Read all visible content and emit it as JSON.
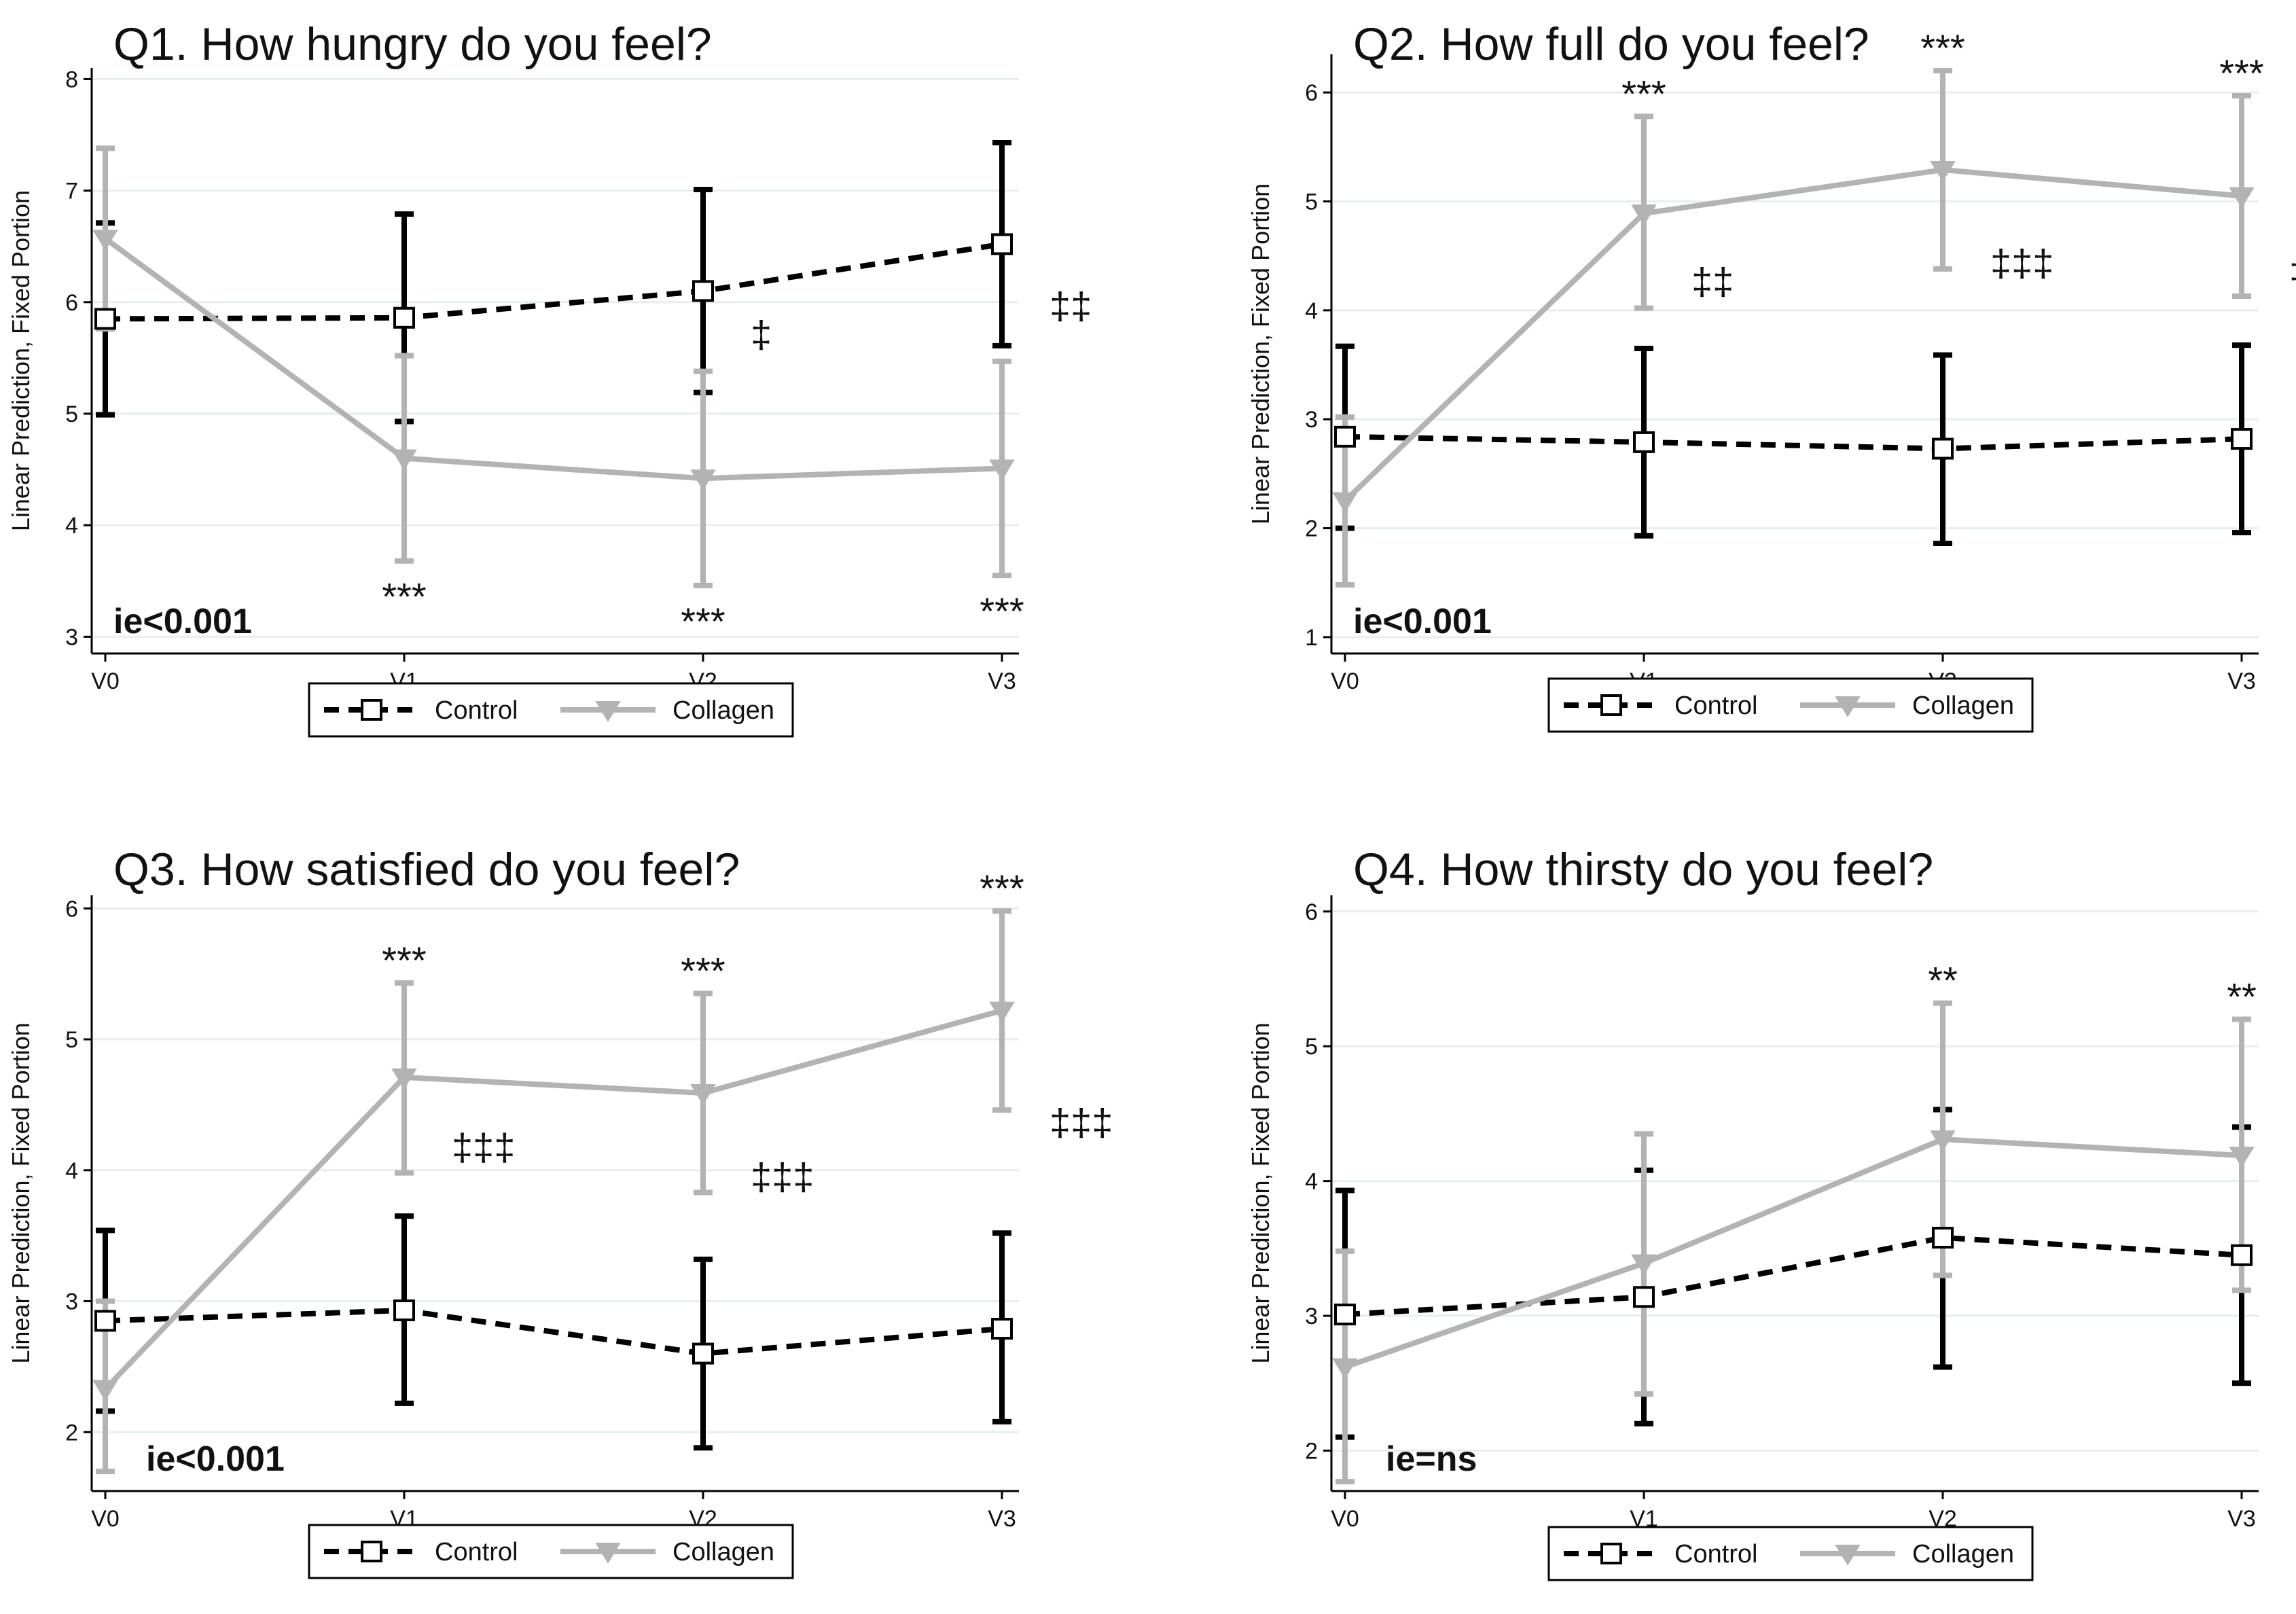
{
  "legend": {
    "control": "Control",
    "collagen": "Collagen"
  },
  "colors": {
    "control": "#000000",
    "collagen": "#b3b3b3",
    "grid": "#e6eef2",
    "axis": "#000000"
  },
  "chart_data": [
    {
      "type": "line",
      "title": "Q1. How hungry do you feel?",
      "ylabel": "Linear Prediction, Fixed Portion",
      "xlabel": "",
      "categories": [
        "V0",
        "V1",
        "V2",
        "V3"
      ],
      "ylim": [
        2.85,
        8.1
      ],
      "yticks": [
        3,
        4,
        5,
        6,
        7,
        8
      ],
      "grid": true,
      "series": [
        {
          "name": "Control",
          "values": [
            5.85,
            5.86,
            6.1,
            6.52
          ],
          "lower": [
            4.99,
            4.93,
            5.19,
            5.61
          ],
          "upper": [
            6.71,
            6.79,
            7.01,
            7.43
          ]
        },
        {
          "name": "Collagen",
          "values": [
            6.57,
            4.6,
            4.42,
            4.51
          ],
          "lower": [
            5.76,
            3.68,
            3.46,
            3.55
          ],
          "upper": [
            7.38,
            5.52,
            5.38,
            5.47
          ]
        }
      ],
      "stars": [
        "",
        "***",
        "***",
        "***"
      ],
      "stars_position": "below",
      "daggers": [
        "",
        "",
        "‡",
        "‡‡"
      ],
      "ie": "ie<0.001",
      "legend_position": "bottom"
    },
    {
      "type": "line",
      "title": "Q2. How full do you feel?",
      "ylabel": "Linear Prediction, Fixed Portion",
      "xlabel": "",
      "categories": [
        "V0",
        "V1",
        "V2",
        "V3"
      ],
      "ylim": [
        0.85,
        6.35
      ],
      "yticks": [
        1,
        2,
        3,
        4,
        5,
        6
      ],
      "grid": true,
      "series": [
        {
          "name": "Control",
          "values": [
            2.84,
            2.79,
            2.73,
            2.82
          ],
          "lower": [
            2.0,
            1.93,
            1.86,
            1.96
          ],
          "upper": [
            3.67,
            3.65,
            3.59,
            3.68
          ]
        },
        {
          "name": "Collagen",
          "values": [
            2.25,
            4.89,
            5.29,
            5.05
          ],
          "lower": [
            1.48,
            4.02,
            4.38,
            4.13
          ],
          "upper": [
            3.02,
            5.78,
            6.2,
            5.97
          ]
        }
      ],
      "stars": [
        "",
        "***",
        "***",
        "***"
      ],
      "stars_position": "above",
      "daggers": [
        "",
        "‡‡",
        "‡‡‡",
        "‡‡‡"
      ],
      "ie": "ie<0.001",
      "legend_position": "bottom"
    },
    {
      "type": "line",
      "title": "Q3. How satisfied do you feel?",
      "ylabel": "Linear Prediction, Fixed Portion",
      "xlabel": "",
      "categories": [
        "V0",
        "V1",
        "V2",
        "V3"
      ],
      "ylim": [
        1.55,
        6.1
      ],
      "yticks": [
        2,
        3,
        4,
        5,
        6
      ],
      "grid": true,
      "series": [
        {
          "name": "Control",
          "values": [
            2.85,
            2.93,
            2.6,
            2.79
          ],
          "lower": [
            2.16,
            2.22,
            1.88,
            2.08
          ],
          "upper": [
            3.54,
            3.65,
            3.32,
            3.52
          ]
        },
        {
          "name": "Collagen",
          "values": [
            2.33,
            4.71,
            4.59,
            5.22
          ],
          "lower": [
            1.7,
            3.98,
            3.83,
            4.46
          ],
          "upper": [
            3.0,
            5.43,
            5.35,
            5.98
          ]
        }
      ],
      "stars": [
        "",
        "***",
        "***",
        "***"
      ],
      "stars_position": "above",
      "daggers": [
        "",
        "‡‡‡",
        "‡‡‡",
        "‡‡‡"
      ],
      "ie": "ie<0.001",
      "legend_position": "bottom"
    },
    {
      "type": "line",
      "title": "Q4. How thirsty do you feel?",
      "ylabel": "Linear Prediction, Fixed Portion",
      "xlabel": "",
      "categories": [
        "V0",
        "V1",
        "V2",
        "V3"
      ],
      "ylim": [
        1.7,
        6.12
      ],
      "yticks": [
        2,
        3,
        4,
        5,
        6
      ],
      "grid": true,
      "series": [
        {
          "name": "Control",
          "values": [
            3.01,
            3.14,
            3.58,
            3.45
          ],
          "lower": [
            2.1,
            2.2,
            2.62,
            2.5
          ],
          "upper": [
            3.93,
            4.08,
            4.53,
            4.4
          ]
        },
        {
          "name": "Collagen",
          "values": [
            2.62,
            3.39,
            4.31,
            4.19
          ],
          "lower": [
            1.77,
            2.42,
            3.3,
            3.19
          ],
          "upper": [
            3.48,
            4.35,
            5.32,
            5.2
          ]
        }
      ],
      "stars": [
        "",
        "",
        "**",
        "**"
      ],
      "stars_position": "above",
      "daggers": [
        "",
        "",
        "",
        ""
      ],
      "ie": "ie=ns",
      "legend_position": "bottom"
    }
  ]
}
